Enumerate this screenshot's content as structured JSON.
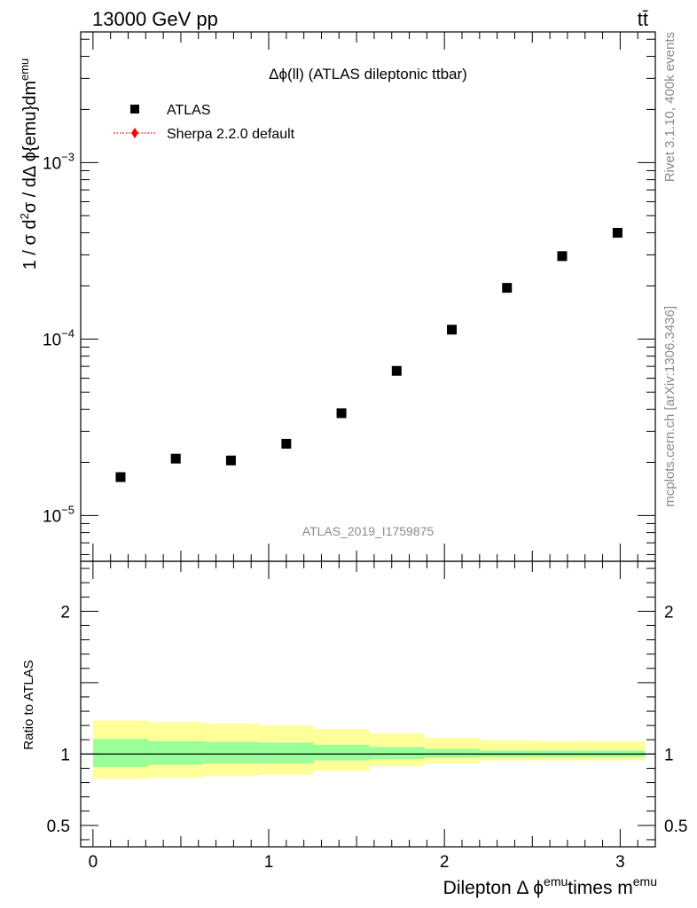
{
  "header": {
    "energy_label": "13000 GeV pp",
    "process_label": "tt̄"
  },
  "side_labels": {
    "rivet": "Rivet 3.1.10,  400k events",
    "mcplots": "mcplots.cern.ch [arXiv:1306.3436]"
  },
  "chart_data": [
    {
      "type": "scatter",
      "title": "Δϕ(ll) (ATLAS dileptonic ttbar)",
      "watermark": "ATLAS_2019_I1759875",
      "ylabel": "1 / σ  d²σ / dΔ ϕ{emu}dm^emu",
      "yscale": "log",
      "ylim": [
        5.5e-06,
        0.0055
      ],
      "xlim": [
        -0.07,
        3.2
      ],
      "yticks": [
        {
          "value": 1e-05,
          "mantissa": "10",
          "exponent": "−5"
        },
        {
          "value": 0.0001,
          "mantissa": "10",
          "exponent": "−4"
        },
        {
          "value": 0.001,
          "mantissa": "10",
          "exponent": "−3"
        }
      ],
      "legend_position": "top-left",
      "series": [
        {
          "name": "ATLAS",
          "marker": "square",
          "color": "#000000",
          "x": [
            0.157,
            0.471,
            0.785,
            1.1,
            1.414,
            1.728,
            2.042,
            2.356,
            2.67,
            2.985
          ],
          "y": [
            1.65e-05,
            2.1e-05,
            2.05e-05,
            2.55e-05,
            3.8e-05,
            6.6e-05,
            0.000113,
            0.000195,
            0.000295,
            0.0004
          ]
        },
        {
          "name": "Sherpa 2.2.0 default",
          "marker": "diamond",
          "color": "#ff0000",
          "line": "dotted",
          "x": [],
          "y": []
        }
      ]
    },
    {
      "type": "area",
      "ylabel": "Ratio to ATLAS",
      "xlabel": "Dilepton Δ ϕ^emu times m^emu",
      "ylim": [
        0.35,
        2.35
      ],
      "xlim": [
        -0.07,
        3.2
      ],
      "xticks": [
        "0",
        "1",
        "2",
        "3"
      ],
      "yticks": [
        "0.5",
        "1",
        "2"
      ],
      "reference_line": 1,
      "bin_edges": [
        0,
        0.314,
        0.628,
        0.942,
        1.257,
        1.571,
        1.885,
        2.199,
        2.513,
        2.827,
        3.142
      ],
      "band_inner": {
        "color": "#99ff99",
        "lo": [
          0.91,
          0.925,
          0.935,
          0.935,
          0.955,
          0.965,
          0.975,
          0.98,
          0.98,
          0.98
        ],
        "hi": [
          1.105,
          1.09,
          1.085,
          1.08,
          1.065,
          1.05,
          1.035,
          1.025,
          1.025,
          1.025
        ]
      },
      "band_outer": {
        "color": "#ffff99",
        "lo": [
          0.825,
          0.835,
          0.845,
          0.855,
          0.885,
          0.915,
          0.935,
          0.955,
          0.955,
          0.955
        ],
        "hi": [
          1.235,
          1.225,
          1.215,
          1.2,
          1.175,
          1.145,
          1.115,
          1.095,
          1.09,
          1.09
        ]
      }
    }
  ]
}
